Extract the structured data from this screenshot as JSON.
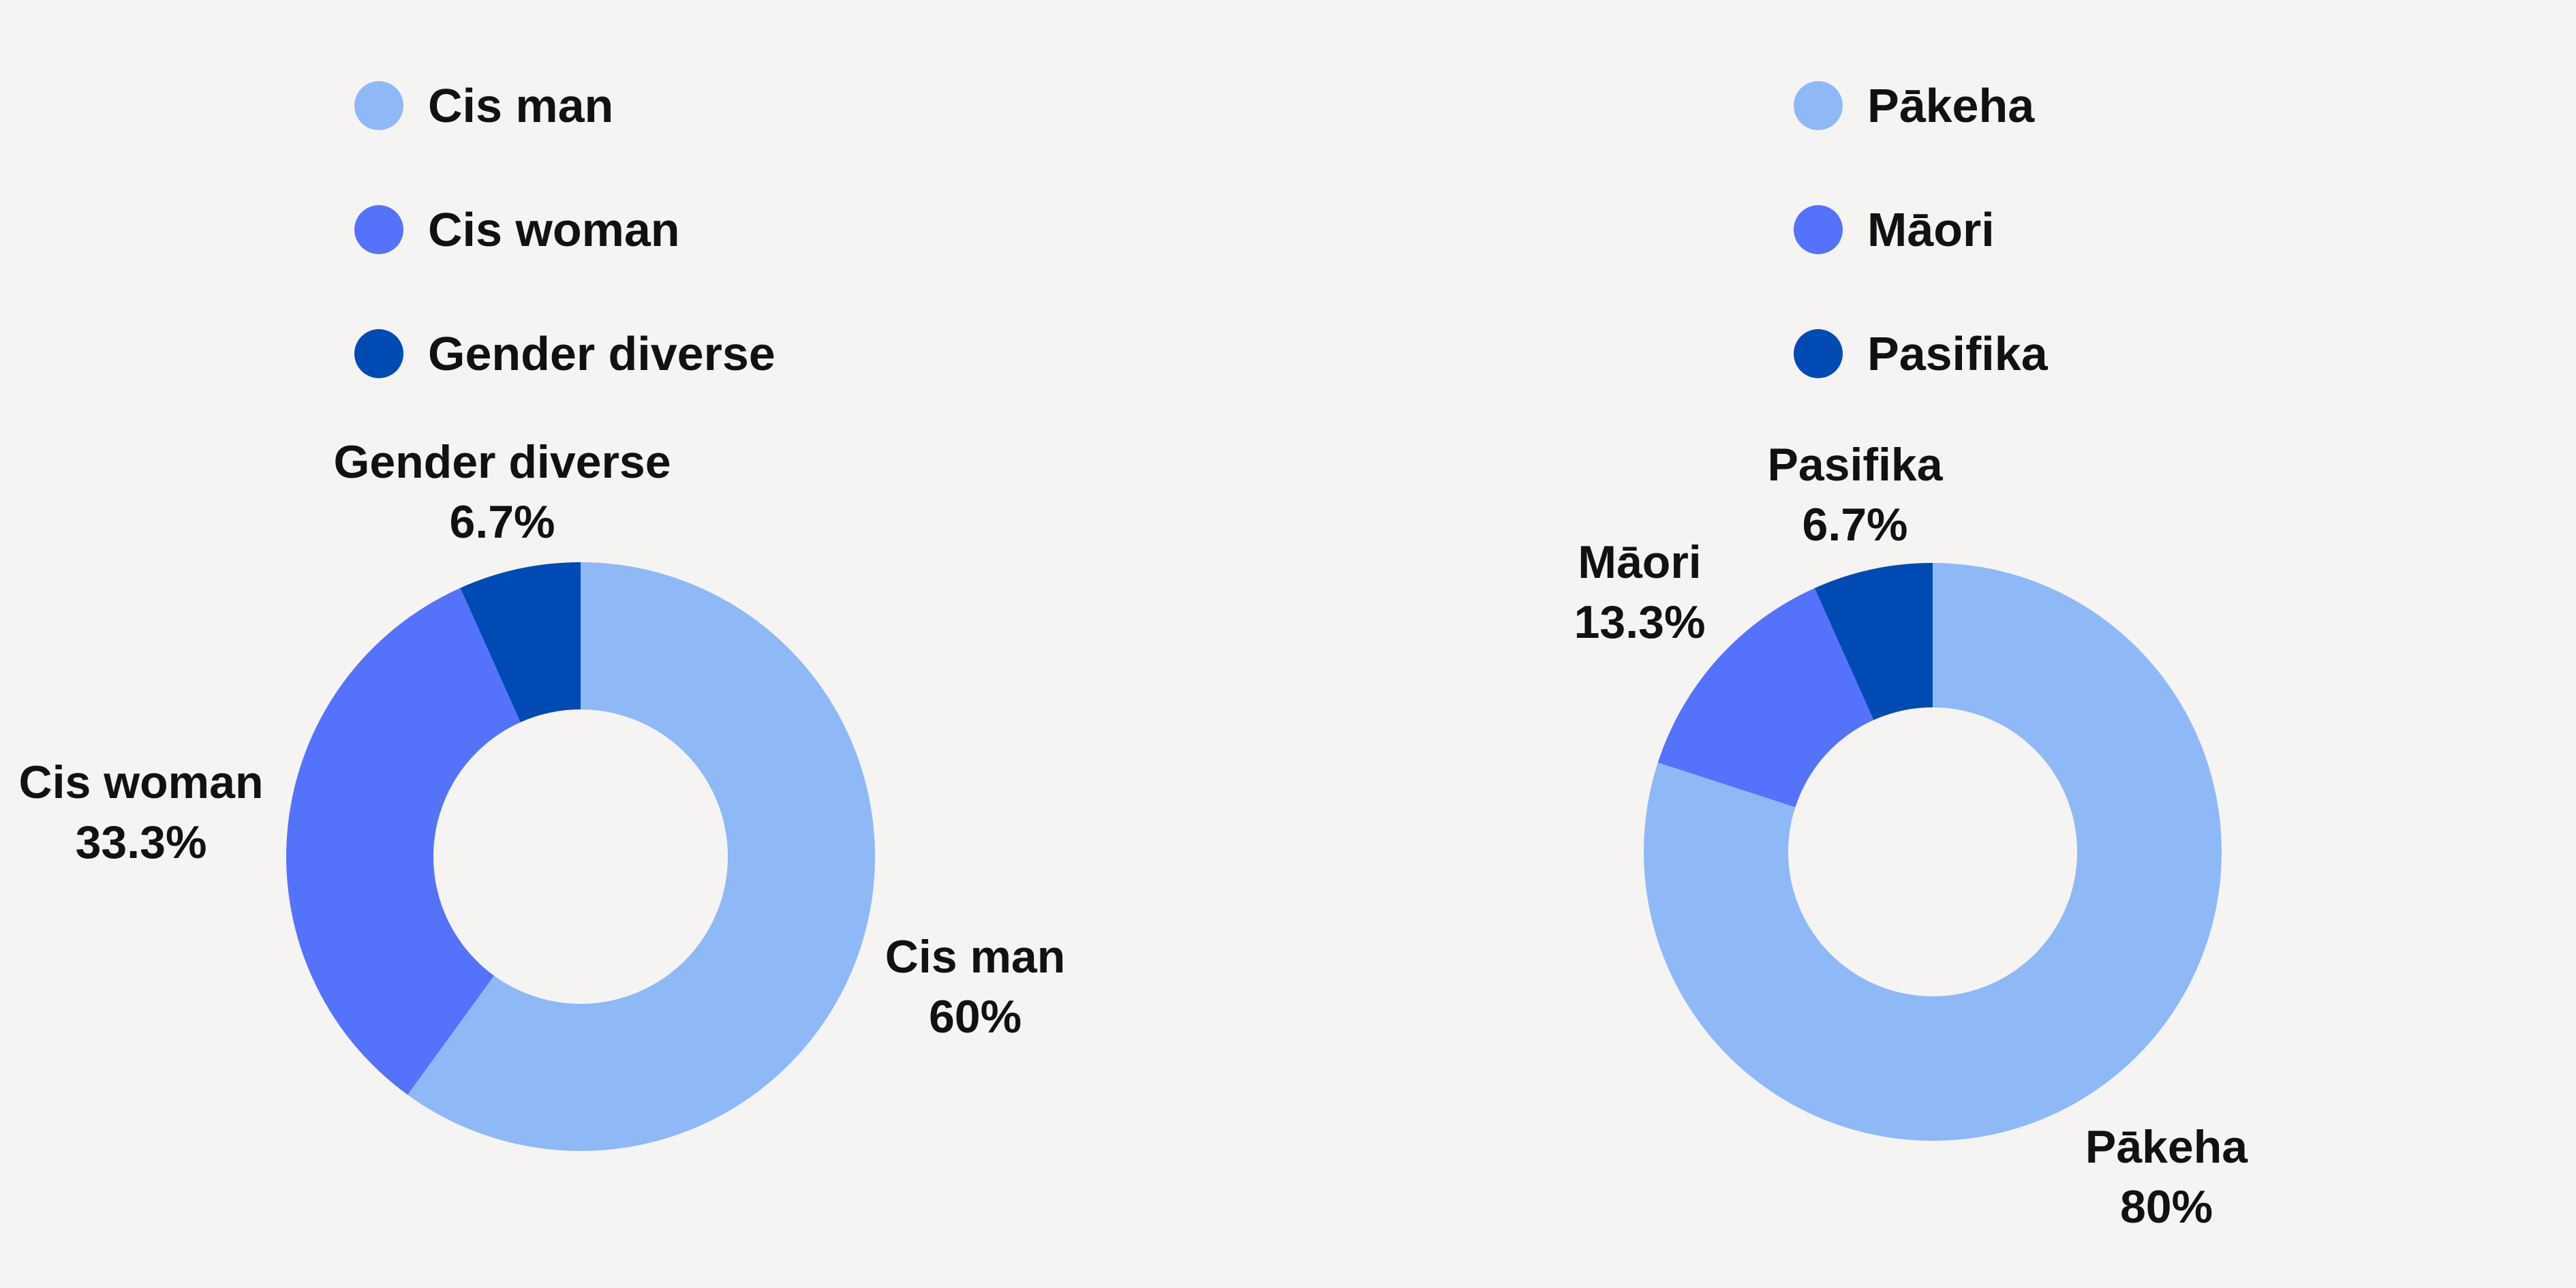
{
  "colors": {
    "light_blue": "#8fb9f6",
    "medium_blue": "#5572fd",
    "dark_blue": "#004bb3",
    "background": "#f5f4f3"
  },
  "chart_data": [
    {
      "type": "pie",
      "donut": true,
      "legend_position": "top",
      "series": [
        {
          "name": "Cis man",
          "value": 60,
          "label": "60%",
          "color": "#8fb9f6"
        },
        {
          "name": "Cis woman",
          "value": 33.3,
          "label": "33.3%",
          "color": "#5572fd"
        },
        {
          "name": "Gender diverse",
          "value": 6.7,
          "label": "6.7%",
          "color": "#004bb3"
        }
      ]
    },
    {
      "type": "pie",
      "donut": true,
      "legend_position": "top",
      "series": [
        {
          "name": "Pākeha",
          "value": 80,
          "label": "80%",
          "color": "#8fb9f6"
        },
        {
          "name": "Māori",
          "value": 13.3,
          "label": "13.3%",
          "color": "#5572fd"
        },
        {
          "name": "Pasifika",
          "value": 6.7,
          "label": "6.7%",
          "color": "#004bb3"
        }
      ]
    }
  ]
}
